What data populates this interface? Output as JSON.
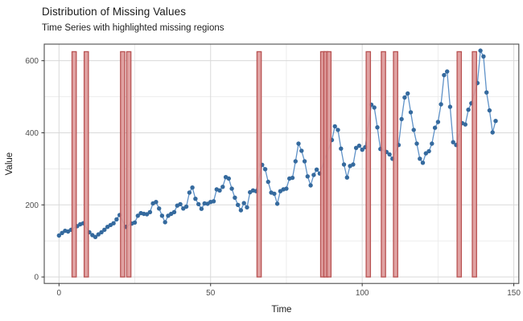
{
  "header": {
    "title": "Distribution of Missing Values",
    "subtitle": "Time Series with highlighted missing regions"
  },
  "chart_data": {
    "type": "line",
    "title": "Distribution of Missing Values",
    "subtitle": "Time Series with highlighted missing regions",
    "xlabel": "Time",
    "ylabel": "Value",
    "xlim": [
      -4.86,
      151.65
    ],
    "ylim": [
      -18,
      646
    ],
    "x_ticks": [
      0,
      50,
      100,
      150
    ],
    "y_ticks": [
      0,
      200,
      400,
      600
    ],
    "x_minor_gridlines": [
      25,
      75,
      125
    ],
    "y_minor_gridlines": [
      100,
      300,
      500
    ],
    "grid": true,
    "legend": false,
    "missing_regions": {
      "label": "highlighted missing regions",
      "x_centers": [
        5,
        9,
        21,
        23,
        66,
        87,
        88,
        89,
        102,
        107,
        111,
        132,
        137
      ],
      "bar_width": 1.4,
      "ymin": 0,
      "ymax": 625
    },
    "series": [
      {
        "name": "Value",
        "points": [
          [
            0,
            115
          ],
          [
            1,
            122
          ],
          [
            2,
            128
          ],
          [
            3,
            126
          ],
          [
            4,
            131
          ],
          [
            6,
            141
          ],
          [
            7,
            146
          ],
          [
            8,
            149
          ],
          [
            10,
            124
          ],
          [
            11,
            116
          ],
          [
            12,
            111
          ],
          [
            13,
            118
          ],
          [
            14,
            124
          ],
          [
            15,
            131
          ],
          [
            16,
            139
          ],
          [
            17,
            144
          ],
          [
            18,
            149
          ],
          [
            19,
            160
          ],
          [
            20,
            172
          ],
          [
            22,
            139
          ],
          [
            24,
            148
          ],
          [
            25,
            151
          ],
          [
            26,
            170
          ],
          [
            27,
            177
          ],
          [
            28,
            175
          ],
          [
            29,
            174
          ],
          [
            30,
            180
          ],
          [
            31,
            204
          ],
          [
            32,
            208
          ],
          [
            33,
            190
          ],
          [
            34,
            170
          ],
          [
            35,
            152
          ],
          [
            36,
            170
          ],
          [
            37,
            175
          ],
          [
            38,
            180
          ],
          [
            39,
            198
          ],
          [
            40,
            202
          ],
          [
            41,
            190
          ],
          [
            42,
            195
          ],
          [
            43,
            234
          ],
          [
            44,
            248
          ],
          [
            45,
            217
          ],
          [
            46,
            202
          ],
          [
            47,
            189
          ],
          [
            48,
            204
          ],
          [
            49,
            203
          ],
          [
            50,
            208
          ],
          [
            51,
            210
          ],
          [
            52,
            243
          ],
          [
            53,
            240
          ],
          [
            54,
            250
          ],
          [
            55,
            277
          ],
          [
            56,
            273
          ],
          [
            57,
            245
          ],
          [
            58,
            220
          ],
          [
            59,
            200
          ],
          [
            60,
            185
          ],
          [
            61,
            205
          ],
          [
            62,
            193
          ],
          [
            63,
            235
          ],
          [
            64,
            240
          ],
          [
            65,
            238
          ],
          [
            67,
            311
          ],
          [
            68,
            299
          ],
          [
            69,
            264
          ],
          [
            70,
            234
          ],
          [
            71,
            231
          ],
          [
            72,
            203
          ],
          [
            73,
            238
          ],
          [
            74,
            243
          ],
          [
            75,
            245
          ],
          [
            76,
            273
          ],
          [
            77,
            275
          ],
          [
            78,
            321
          ],
          [
            79,
            370
          ],
          [
            80,
            350
          ],
          [
            81,
            321
          ],
          [
            82,
            279
          ],
          [
            83,
            254
          ],
          [
            84,
            283
          ],
          [
            85,
            298
          ],
          [
            86,
            287
          ],
          [
            90,
            380
          ],
          [
            91,
            418
          ],
          [
            92,
            408
          ],
          [
            93,
            356
          ],
          [
            94,
            312
          ],
          [
            95,
            276
          ],
          [
            96,
            308
          ],
          [
            97,
            312
          ],
          [
            98,
            358
          ],
          [
            99,
            364
          ],
          [
            100,
            353
          ],
          [
            101,
            360
          ],
          [
            103,
            478
          ],
          [
            104,
            470
          ],
          [
            105,
            415
          ],
          [
            106,
            355
          ],
          [
            108,
            347
          ],
          [
            109,
            340
          ],
          [
            110,
            328
          ],
          [
            112,
            366
          ],
          [
            113,
            438
          ],
          [
            114,
            498
          ],
          [
            115,
            509
          ],
          [
            116,
            457
          ],
          [
            117,
            408
          ],
          [
            118,
            370
          ],
          [
            119,
            328
          ],
          [
            120,
            317
          ],
          [
            121,
            343
          ],
          [
            122,
            349
          ],
          [
            123,
            370
          ],
          [
            124,
            414
          ],
          [
            125,
            430
          ],
          [
            126,
            479
          ],
          [
            127,
            560
          ],
          [
            128,
            570
          ],
          [
            129,
            472
          ],
          [
            130,
            374
          ],
          [
            131,
            366
          ],
          [
            133,
            427
          ],
          [
            134,
            423
          ],
          [
            135,
            464
          ],
          [
            136,
            482
          ],
          [
            138,
            538
          ],
          [
            139,
            628
          ],
          [
            140,
            612
          ],
          [
            141,
            512
          ],
          [
            142,
            462
          ],
          [
            143,
            401
          ],
          [
            144,
            433
          ]
        ]
      }
    ],
    "colors": {
      "point": "#356a9e",
      "line": "#5f92c8",
      "missing_fill": "#dd9898",
      "missing_stroke": "#b85252",
      "grid_major": "#d9d9d9",
      "grid_minor": "#ebebeb",
      "panel_border": "#4d4d4d",
      "tick": "#333333",
      "tick_label": "#4d4d4d",
      "axis_title": "#1a1a1a",
      "background": "#ffffff"
    }
  }
}
